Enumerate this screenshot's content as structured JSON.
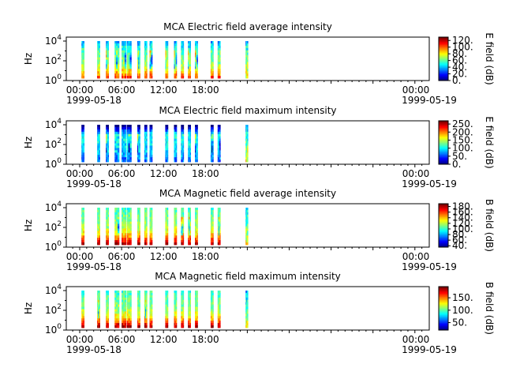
{
  "chart_data": [
    {
      "type": "heatmap",
      "title": "MCA  Electric field average intensity",
      "ylabel": "Hz",
      "yscale": "log",
      "ylim": [
        1,
        60000
      ],
      "yticks": [
        {
          "base": "10",
          "exp": "0"
        },
        {
          "base": "10",
          "exp": "2"
        },
        {
          "base": "10",
          "exp": "4"
        }
      ],
      "xlim": [
        "1999-05-17 23:00",
        "1999-05-20 01:00"
      ],
      "xticks": [
        "00:00",
        "06:00",
        "12:00",
        "18:00",
        "00:00"
      ],
      "xdates": [
        "1999-05-18",
        "",
        "",
        "",
        "1999-05-19"
      ],
      "colorbar": {
        "label": "E field (dB)",
        "range": [
          0,
          130
        ],
        "ticks": [
          "0.",
          "20.",
          "40.",
          "60.",
          "80.",
          "100.",
          "120."
        ],
        "colormap": "jet"
      },
      "series": []
    },
    {
      "type": "heatmap",
      "title": "MCA  Electric field maximum intensity",
      "ylabel": "Hz",
      "yscale": "log",
      "ylim": [
        1,
        60000
      ],
      "yticks": [
        {
          "base": "10",
          "exp": "0"
        },
        {
          "base": "10",
          "exp": "2"
        },
        {
          "base": "10",
          "exp": "4"
        }
      ],
      "xlim": [
        "1999-05-17 23:00",
        "1999-05-20 01:00"
      ],
      "xticks": [
        "00:00",
        "06:00",
        "12:00",
        "18:00",
        "00:00"
      ],
      "xdates": [
        "1999-05-18",
        "",
        "",
        "",
        "1999-05-19"
      ],
      "colorbar": {
        "label": "E field (dB)",
        "range": [
          0,
          270
        ],
        "ticks": [
          "0.",
          "50.",
          "100.",
          "150.",
          "200.",
          "250."
        ],
        "colormap": "jet"
      },
      "series": []
    },
    {
      "type": "heatmap",
      "title": "MCA  Magnetic field average intensity",
      "ylabel": "Hz",
      "yscale": "log",
      "ylim": [
        1,
        60000
      ],
      "yticks": [
        {
          "base": "10",
          "exp": "0"
        },
        {
          "base": "10",
          "exp": "2"
        },
        {
          "base": "10",
          "exp": "4"
        }
      ],
      "xlim": [
        "1999-05-17 23:00",
        "1999-05-20 01:00"
      ],
      "xticks": [
        "00:00",
        "06:00",
        "12:00",
        "18:00",
        "00:00"
      ],
      "xdates": [
        "1999-05-18",
        "",
        "",
        "",
        "1999-05-19"
      ],
      "colorbar": {
        "label": "B field (dB)",
        "range": [
          35,
          190
        ],
        "ticks": [
          "40.",
          "60.",
          "80.",
          "100.",
          "120.",
          "140.",
          "160.",
          "180."
        ],
        "colormap": "jet"
      },
      "series": []
    },
    {
      "type": "heatmap",
      "title": "MCA  Magnetic field maximum intensity",
      "ylabel": "Hz",
      "yscale": "log",
      "ylim": [
        1,
        60000
      ],
      "yticks": [
        {
          "base": "10",
          "exp": "0"
        },
        {
          "base": "10",
          "exp": "2"
        },
        {
          "base": "10",
          "exp": "4"
        }
      ],
      "xlim": [
        "1999-05-17 23:00",
        "1999-05-20 01:00"
      ],
      "xticks": [
        "00:00",
        "06:00",
        "12:00",
        "18:00",
        "00:00"
      ],
      "xdates": [
        "1999-05-18",
        "",
        "",
        "",
        "1999-05-19"
      ],
      "colorbar": {
        "label": "B field (dB)",
        "range": [
          20,
          195
        ],
        "ticks": [
          "50.",
          "100.",
          "150."
        ],
        "colormap": "jet"
      },
      "series": []
    }
  ],
  "data_intervals": [
    [
      "00:15",
      "00:45"
    ],
    [
      "02:30",
      "03:00"
    ],
    [
      "03:45",
      "04:15"
    ],
    [
      "05:00",
      "05:45"
    ],
    [
      "06:00",
      "06:45"
    ],
    [
      "06:45",
      "07:30"
    ],
    [
      "08:15",
      "08:45"
    ],
    [
      "09:15",
      "09:45"
    ],
    [
      "10:00",
      "10:30"
    ],
    [
      "12:15",
      "12:45"
    ],
    [
      "13:30",
      "14:00"
    ],
    [
      "14:30",
      "15:00"
    ],
    [
      "15:30",
      "16:00"
    ],
    [
      "16:30",
      "17:00"
    ],
    [
      "18:45",
      "19:15"
    ],
    [
      "19:45",
      "20:15"
    ],
    [
      "23:45",
      "24:00"
    ]
  ]
}
